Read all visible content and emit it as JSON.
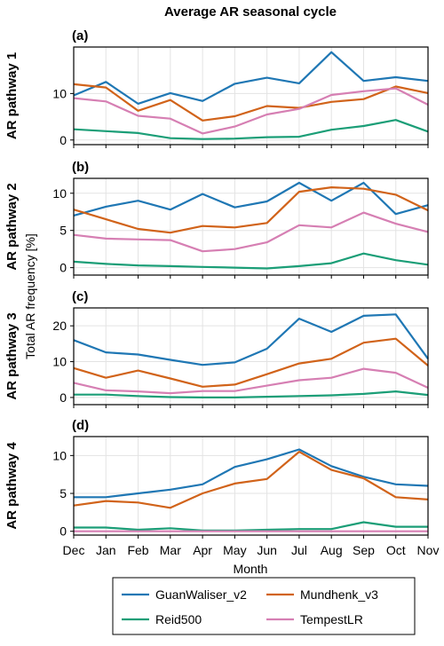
{
  "title": "Average AR seasonal cycle",
  "shared_ylabel": "Total AR frequency [%]",
  "xlabel": "Month",
  "colors": {
    "GuanWaliser_v2": "#1f77b4",
    "Mundhenk_v3": "#d1631a",
    "Reid500": "#1b9e77",
    "TempestLR": "#d67fb3"
  },
  "chart_data": [
    {
      "type": "line",
      "panel_label": "(a)",
      "ylabel": "AR pathway 1",
      "x": [
        "Dec",
        "Jan",
        "Feb",
        "Mar",
        "Apr",
        "May",
        "Jun",
        "Jul",
        "Aug",
        "Sep",
        "Oct",
        "Nov"
      ],
      "ylim": [
        -1,
        20
      ],
      "yticks": [
        0,
        10
      ],
      "grid": true,
      "series": [
        {
          "name": "GuanWaliser_v2",
          "values": [
            9.6,
            12.5,
            7.8,
            10.1,
            8.4,
            12.1,
            13.4,
            12.2,
            18.9,
            12.7,
            13.5,
            12.7
          ]
        },
        {
          "name": "Mundhenk_v3",
          "values": [
            12.0,
            11.3,
            6.3,
            8.6,
            4.2,
            5.1,
            7.3,
            6.9,
            8.2,
            8.8,
            11.5,
            10.1
          ]
        },
        {
          "name": "Reid500",
          "values": [
            2.3,
            1.9,
            1.5,
            0.4,
            0.2,
            0.3,
            0.6,
            0.7,
            2.2,
            3.0,
            4.3,
            1.8
          ]
        },
        {
          "name": "TempestLR",
          "values": [
            9.0,
            8.3,
            5.2,
            4.6,
            1.4,
            2.9,
            5.5,
            6.7,
            9.7,
            10.5,
            11.1,
            7.6
          ]
        }
      ]
    },
    {
      "type": "line",
      "panel_label": "(b)",
      "ylabel": "AR pathway 2",
      "x": [
        "Dec",
        "Jan",
        "Feb",
        "Mar",
        "Apr",
        "May",
        "Jun",
        "Jul",
        "Aug",
        "Sep",
        "Oct",
        "Nov"
      ],
      "ylim": [
        -1,
        12
      ],
      "yticks": [
        0,
        5,
        10
      ],
      "grid": true,
      "series": [
        {
          "name": "GuanWaliser_v2",
          "values": [
            7.0,
            8.2,
            9.0,
            7.8,
            9.9,
            8.1,
            8.9,
            11.4,
            9.0,
            11.4,
            7.2,
            8.4
          ]
        },
        {
          "name": "Mundhenk_v3",
          "values": [
            7.8,
            6.5,
            5.2,
            4.7,
            5.6,
            5.4,
            6.0,
            10.2,
            10.8,
            10.6,
            9.8,
            7.7
          ]
        },
        {
          "name": "Reid500",
          "values": [
            0.8,
            0.5,
            0.3,
            0.2,
            0.1,
            0.0,
            -0.1,
            0.2,
            0.6,
            1.9,
            1.0,
            0.4
          ]
        },
        {
          "name": "TempestLR",
          "values": [
            4.4,
            3.9,
            3.8,
            3.7,
            2.2,
            2.5,
            3.4,
            5.7,
            5.4,
            7.4,
            5.9,
            4.8
          ]
        }
      ]
    },
    {
      "type": "line",
      "panel_label": "(c)",
      "ylabel": "AR pathway 3",
      "x": [
        "Dec",
        "Jan",
        "Feb",
        "Mar",
        "Apr",
        "May",
        "Jun",
        "Jul",
        "Aug",
        "Sep",
        "Oct",
        "Nov"
      ],
      "ylim": [
        -2,
        25
      ],
      "yticks": [
        0,
        10,
        20
      ],
      "grid": true,
      "series": [
        {
          "name": "GuanWaliser_v2",
          "values": [
            16.0,
            12.6,
            12.0,
            10.5,
            9.1,
            9.8,
            13.6,
            22.0,
            18.3,
            22.8,
            23.2,
            10.8
          ]
        },
        {
          "name": "Mundhenk_v3",
          "values": [
            8.2,
            5.5,
            7.5,
            5.3,
            3.0,
            3.6,
            6.5,
            9.5,
            10.8,
            15.3,
            16.4,
            8.9
          ]
        },
        {
          "name": "Reid500",
          "values": [
            0.8,
            0.8,
            0.4,
            0.1,
            0.0,
            0.0,
            0.2,
            0.4,
            0.6,
            1.0,
            1.7,
            0.7
          ]
        },
        {
          "name": "TempestLR",
          "values": [
            4.1,
            2.0,
            1.7,
            1.2,
            1.8,
            1.8,
            3.3,
            4.8,
            5.5,
            8.0,
            6.9,
            2.7
          ]
        }
      ]
    },
    {
      "type": "line",
      "panel_label": "(d)",
      "ylabel": "AR pathway 4",
      "x": [
        "Dec",
        "Jan",
        "Feb",
        "Mar",
        "Apr",
        "May",
        "Jun",
        "Jul",
        "Aug",
        "Sep",
        "Oct",
        "Nov"
      ],
      "ylim": [
        -0.5,
        12.5
      ],
      "yticks": [
        0,
        5,
        10
      ],
      "grid": true,
      "series": [
        {
          "name": "GuanWaliser_v2",
          "values": [
            4.5,
            4.5,
            5.0,
            5.5,
            6.2,
            8.5,
            9.5,
            10.8,
            8.6,
            7.2,
            6.2,
            6.0
          ]
        },
        {
          "name": "Mundhenk_v3",
          "values": [
            3.4,
            4.0,
            3.8,
            3.1,
            5.0,
            6.3,
            6.9,
            10.5,
            8.1,
            7.0,
            4.5,
            4.2
          ]
        },
        {
          "name": "Reid500",
          "values": [
            0.5,
            0.5,
            0.2,
            0.4,
            0.1,
            0.1,
            0.2,
            0.3,
            0.3,
            1.2,
            0.6,
            0.6
          ]
        },
        {
          "name": "TempestLR",
          "values": [
            0.0,
            0.0,
            0.0,
            0.0,
            0.0,
            0.0,
            0.0,
            0.0,
            0.0,
            0.0,
            0.0,
            0.0
          ]
        }
      ]
    }
  ],
  "legend": {
    "placement": "bottom",
    "entries": [
      "GuanWaliser_v2",
      "Mundhenk_v3",
      "Reid500",
      "TempestLR"
    ]
  }
}
